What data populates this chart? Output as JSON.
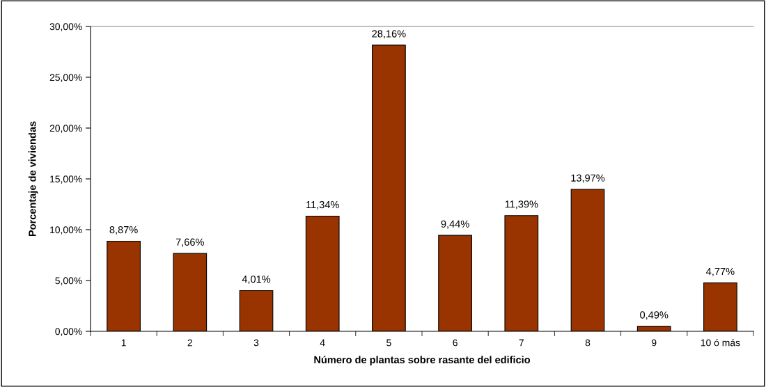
{
  "chart_data": {
    "type": "bar",
    "xlabel": "Número de plantas sobre rasante del edificio",
    "ylabel": "Porcentaje de viviendas",
    "categories": [
      "1",
      "2",
      "3",
      "4",
      "5",
      "6",
      "7",
      "8",
      "9",
      "10 ó más"
    ],
    "values": [
      8.87,
      7.66,
      4.01,
      11.34,
      28.16,
      9.44,
      11.39,
      13.97,
      0.49,
      4.77
    ],
    "value_labels": [
      "8,87%",
      "7,66%",
      "4,01%",
      "11,34%",
      "28,16%",
      "9,44%",
      "11,39%",
      "13,97%",
      "0,49%",
      "4,77%"
    ],
    "color": "#993300",
    "ylim": [
      0,
      30
    ],
    "yticks": [
      {
        "value": 0,
        "label": "0,00%"
      },
      {
        "value": 5,
        "label": "5,00%"
      },
      {
        "value": 10,
        "label": "10,00%"
      },
      {
        "value": 15,
        "label": "15,00%"
      },
      {
        "value": 20,
        "label": "20,00%"
      },
      {
        "value": 25,
        "label": "25,00%"
      },
      {
        "value": 30,
        "label": "30,00%"
      }
    ],
    "grid": false,
    "legend": false
  }
}
